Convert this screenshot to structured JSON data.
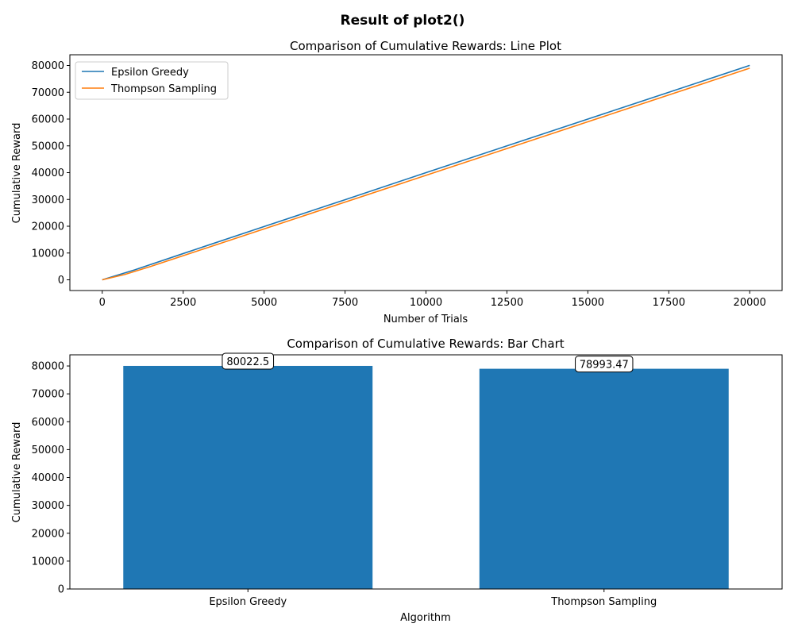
{
  "figure": {
    "suptitle": "Result of plot2()"
  },
  "chart_data": [
    {
      "type": "line",
      "title": "Comparison of Cumulative Rewards: Line Plot",
      "xlabel": "Number of Trials",
      "ylabel": "Cumulative Reward",
      "xlim": [
        -1000,
        21000
      ],
      "ylim": [
        -4000,
        84000
      ],
      "xticks": [
        0,
        2500,
        5000,
        7500,
        10000,
        12500,
        15000,
        17500,
        20000
      ],
      "yticks": [
        0,
        10000,
        20000,
        30000,
        40000,
        50000,
        60000,
        70000,
        80000
      ],
      "grid": false,
      "legend_position": "upper-left",
      "series": [
        {
          "name": "Epsilon Greedy",
          "color": "#1f77b4",
          "x": [
            0,
            1000,
            2500,
            5000,
            7500,
            10000,
            12500,
            15000,
            17500,
            20000
          ],
          "y": [
            0,
            3700,
            9800,
            19900,
            29900,
            40000,
            50000,
            60000,
            70000,
            80022.5
          ]
        },
        {
          "name": "Thompson Sampling",
          "color": "#ff7f0e",
          "x": [
            0,
            700,
            1500,
            2500,
            5000,
            7500,
            10000,
            12500,
            15000,
            17500,
            20000
          ],
          "y": [
            0,
            2000,
            5000,
            9000,
            19000,
            29000,
            39000,
            49000,
            59000,
            69000,
            78993.47
          ]
        }
      ]
    },
    {
      "type": "bar",
      "title": "Comparison of Cumulative Rewards: Bar Chart",
      "xlabel": "Algorithm",
      "ylabel": "Cumulative Reward",
      "categories": [
        "Epsilon Greedy",
        "Thompson Sampling"
      ],
      "values": [
        80022.5,
        78993.47
      ],
      "value_labels": [
        "80022.5",
        "78993.47"
      ],
      "ylim": [
        0,
        84000
      ],
      "yticks": [
        0,
        10000,
        20000,
        30000,
        40000,
        50000,
        60000,
        70000,
        80000
      ],
      "grid": false,
      "bar_color": "#1f77b4"
    }
  ]
}
